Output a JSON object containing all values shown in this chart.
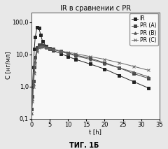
{
  "title": "IR в сравнении с PR",
  "xlabel": "t [h]",
  "ylabel": "C [нг/мл]",
  "caption": "ΤИГ. 1Б",
  "xlim": [
    0,
    35
  ],
  "ylim_log": [
    0.1,
    200
  ],
  "yticks": [
    0.1,
    1.0,
    10.0,
    100.0
  ],
  "ytick_labels": [
    "0,1",
    "1,0",
    "10,0",
    "100,0"
  ],
  "xticks": [
    0,
    5,
    10,
    15,
    20,
    25,
    30,
    35
  ],
  "series": {
    "IR": {
      "x": [
        0,
        0.25,
        0.5,
        0.75,
        1.0,
        1.5,
        2.0,
        2.5,
        3.0,
        4.0,
        5.0,
        6.0,
        8.0,
        10.0,
        12.0,
        16.0,
        20.0,
        24.0,
        28.0,
        32.0
      ],
      "y": [
        0.2,
        1.0,
        4.0,
        15.0,
        35.0,
        70.0,
        65.0,
        40.0,
        25.0,
        18.0,
        15.0,
        13.0,
        10.5,
        8.5,
        7.0,
        5.0,
        3.5,
        2.2,
        1.4,
        0.9
      ],
      "marker": "s",
      "color": "#222222",
      "linestyle": "-",
      "ms": 2.5
    },
    "PR (A)": {
      "x": [
        0,
        0.25,
        0.5,
        0.75,
        1.0,
        1.5,
        2.0,
        2.5,
        3.0,
        4.0,
        5.0,
        6.0,
        8.0,
        10.0,
        12.0,
        16.0,
        20.0,
        24.0,
        28.0,
        32.0
      ],
      "y": [
        0.2,
        0.5,
        1.5,
        4.0,
        8.0,
        16.0,
        20.0,
        20.0,
        19.0,
        17.0,
        15.5,
        14.5,
        12.5,
        11.0,
        9.5,
        7.5,
        5.5,
        3.8,
        2.5,
        1.8
      ],
      "marker": "s",
      "color": "#444444",
      "linestyle": "-",
      "ms": 2.5
    },
    "PR (B)": {
      "x": [
        0,
        0.25,
        0.5,
        0.75,
        1.0,
        1.5,
        2.0,
        2.5,
        3.0,
        4.0,
        5.0,
        6.0,
        8.0,
        10.0,
        12.0,
        16.0,
        20.0,
        24.0,
        28.0,
        32.0
      ],
      "y": [
        0.15,
        0.4,
        1.2,
        3.0,
        6.0,
        13.0,
        17.0,
        18.0,
        17.5,
        16.5,
        15.0,
        14.0,
        12.0,
        10.5,
        9.0,
        7.0,
        5.2,
        3.8,
        2.8,
        2.0
      ],
      "marker": "^",
      "color": "#555555",
      "linestyle": "-",
      "ms": 2.5
    },
    "PR (C)": {
      "x": [
        0,
        0.25,
        0.5,
        0.75,
        1.0,
        1.5,
        2.0,
        2.5,
        3.0,
        4.0,
        5.0,
        6.0,
        8.0,
        10.0,
        12.0,
        16.0,
        20.0,
        24.0,
        28.0,
        32.0
      ],
      "y": [
        0.15,
        0.35,
        1.0,
        2.5,
        5.0,
        12.0,
        16.0,
        17.0,
        17.0,
        16.0,
        15.0,
        14.0,
        12.5,
        11.5,
        10.5,
        8.5,
        7.0,
        5.5,
        4.2,
        3.2
      ],
      "marker": "x",
      "color": "#666666",
      "linestyle": "-",
      "ms": 3.0
    }
  },
  "fig_bg": "#e8e8e8",
  "plot_bg": "#f8f8f8",
  "legend_fontsize": 5.5,
  "axis_fontsize": 6,
  "title_fontsize": 7,
  "caption_fontsize": 7
}
